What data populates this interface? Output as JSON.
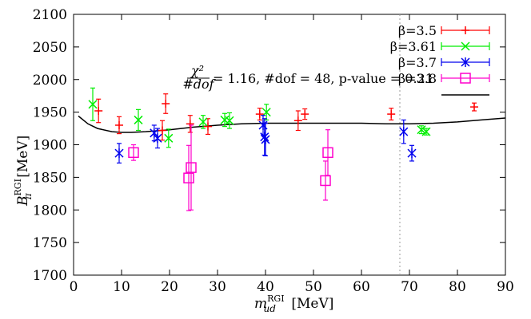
{
  "chart_data": {
    "type": "scatter",
    "title": "",
    "xlabel": {
      "base": "m",
      "sub": "ud",
      "sup": "RGI",
      "unit": "[MeV]"
    },
    "ylabel": {
      "base": "B",
      "sub": "π",
      "sup": "RGI",
      "unit": "[MeV]"
    },
    "xlim": [
      0,
      90
    ],
    "ylim": [
      1700,
      2100
    ],
    "xticks": [
      0,
      10,
      20,
      30,
      40,
      50,
      60,
      70,
      80,
      90
    ],
    "yticks": [
      1700,
      1750,
      1800,
      1850,
      1900,
      1950,
      2000,
      2050,
      2100
    ],
    "grid": false,
    "legend_position": "top-right",
    "vertical_line": {
      "x": 68,
      "style": "dotted",
      "color": "#999999"
    },
    "series": [
      {
        "name": "β=3.5",
        "color": "#ff0000",
        "marker": "plus",
        "points": [
          {
            "x": 5.2,
            "y": 1952,
            "err": 18
          },
          {
            "x": 9.5,
            "y": 1930,
            "err": 13
          },
          {
            "x": 18.5,
            "y": 1922,
            "err": 15
          },
          {
            "x": 19.2,
            "y": 1963,
            "err": 15
          },
          {
            "x": 24.3,
            "y": 1932,
            "err": 13
          },
          {
            "x": 28.0,
            "y": 1928,
            "err": 12
          },
          {
            "x": 38.8,
            "y": 1947,
            "err": 9
          },
          {
            "x": 46.8,
            "y": 1937,
            "err": 15
          },
          {
            "x": 48.2,
            "y": 1947,
            "err": 8
          },
          {
            "x": 66.2,
            "y": 1947,
            "err": 9
          },
          {
            "x": 83.5,
            "y": 1958,
            "err": 6
          }
        ]
      },
      {
        "name": "β=3.61",
        "color": "#00ee00",
        "marker": "cross",
        "points": [
          {
            "x": 4.0,
            "y": 1962,
            "err": 25
          },
          {
            "x": 13.5,
            "y": 1938,
            "err": 16
          },
          {
            "x": 19.8,
            "y": 1910,
            "err": 14
          },
          {
            "x": 27.0,
            "y": 1935,
            "err": 10
          },
          {
            "x": 31.5,
            "y": 1938,
            "err": 10
          },
          {
            "x": 32.5,
            "y": 1937,
            "err": 12
          },
          {
            "x": 40.2,
            "y": 1950,
            "err": 12
          },
          {
            "x": 72.5,
            "y": 1923,
            "err": 6
          },
          {
            "x": 73.5,
            "y": 1920,
            "err": 5
          }
        ]
      },
      {
        "name": "β=3.7",
        "color": "#0000ee",
        "marker": "star",
        "points": [
          {
            "x": 9.5,
            "y": 1887,
            "err": 15
          },
          {
            "x": 16.8,
            "y": 1918,
            "err": 12
          },
          {
            "x": 17.5,
            "y": 1910,
            "err": 15
          },
          {
            "x": 39.5,
            "y": 1930,
            "err": 15
          },
          {
            "x": 39.8,
            "y": 1912,
            "err": 28
          },
          {
            "x": 40.0,
            "y": 1908,
            "err": 25
          },
          {
            "x": 68.8,
            "y": 1920,
            "err": 18
          },
          {
            "x": 70.5,
            "y": 1887,
            "err": 12
          }
        ]
      },
      {
        "name": "β=3.8",
        "color": "#ff00cc",
        "marker": "square",
        "points": [
          {
            "x": 12.5,
            "y": 1888,
            "err": 12
          },
          {
            "x": 24.0,
            "y": 1849,
            "err": 50
          },
          {
            "x": 24.5,
            "y": 1865,
            "err": 65
          },
          {
            "x": 52.5,
            "y": 1845,
            "err": 30
          },
          {
            "x": 53.0,
            "y": 1888,
            "err": 35
          }
        ]
      }
    ],
    "fit": {
      "label": "χ²/#dof = 1.16, #dof = 48, p-value = 0.21",
      "label_parts": {
        "num": "χ²",
        "den": "#dof",
        "rest": " = 1.16, #dof = 48, p-value = 0.21"
      },
      "color": "#000000",
      "x": [
        1,
        3,
        5,
        8,
        10,
        12,
        15,
        20,
        25,
        30,
        35,
        40,
        45,
        50,
        55,
        60,
        65,
        70,
        75,
        80,
        85,
        90
      ],
      "y": [
        1944,
        1932,
        1925,
        1920,
        1919,
        1919,
        1920,
        1923,
        1927,
        1930,
        1932,
        1933,
        1933,
        1933,
        1933,
        1933,
        1932,
        1932,
        1933,
        1935,
        1938,
        1941
      ]
    }
  }
}
